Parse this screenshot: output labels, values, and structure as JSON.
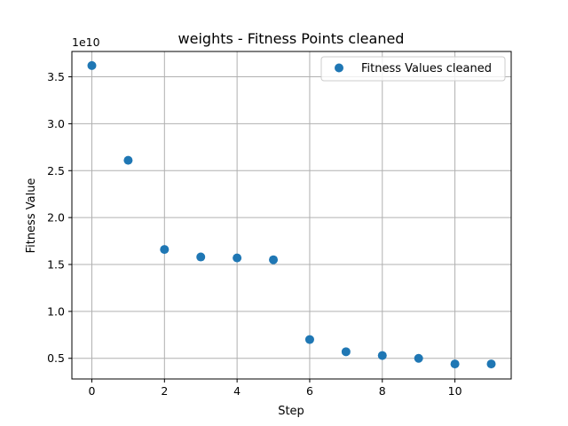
{
  "chart_data": {
    "type": "scatter",
    "title": "weights - Fitness Points cleaned",
    "xlabel": "Step",
    "ylabel": "Fitness Value",
    "y_scale_note": "1e10",
    "xlim": [
      -0.55,
      11.55
    ],
    "ylim": [
      0.28,
      3.77
    ],
    "x_ticks": [
      0,
      2,
      4,
      6,
      8,
      10
    ],
    "x_tick_labels": [
      "0",
      "2",
      "4",
      "6",
      "8",
      "10"
    ],
    "y_ticks": [
      0.5,
      1.0,
      1.5,
      2.0,
      2.5,
      3.0,
      3.5
    ],
    "y_tick_labels": [
      "0.5",
      "1.0",
      "1.5",
      "2.0",
      "2.5",
      "3.0",
      "3.5"
    ],
    "grid": true,
    "legend_position": "top-right",
    "series": [
      {
        "name": "Fitness Values cleaned",
        "color": "#1f77b4",
        "x": [
          0,
          1,
          2,
          3,
          4,
          5,
          6,
          7,
          8,
          9,
          10,
          11
        ],
        "y": [
          3.62,
          2.61,
          1.66,
          1.58,
          1.57,
          1.55,
          0.7,
          0.57,
          0.53,
          0.5,
          0.44,
          0.44
        ]
      }
    ]
  }
}
